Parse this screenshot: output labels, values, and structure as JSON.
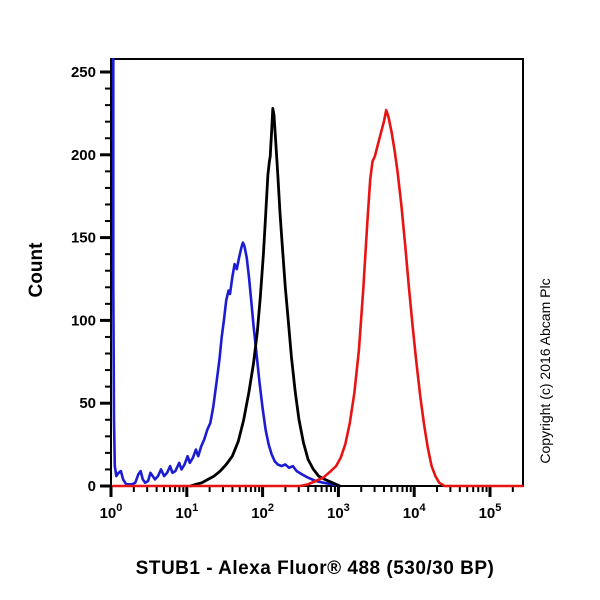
{
  "copyright": "Copyright (c) 2016 Abcam Plc",
  "chart_data": {
    "type": "line",
    "subtype": "flow-cytometry-histogram",
    "title": "STUB1 - Alexa Fluor® 488 (530/30 BP)",
    "xlabel": "STUB1 - Alexa Fluor® 488 (530/30 BP)",
    "ylabel": "Count",
    "grid": false,
    "legend": "none",
    "x_axis": {
      "scale": "log10",
      "min_log": 0,
      "max_log": 5.43,
      "tick_base": "10",
      "tick_exponents": [
        0,
        1,
        2,
        3,
        4,
        5
      ],
      "minor_tick_multiples": [
        2,
        3,
        4,
        5,
        6,
        7,
        8,
        9
      ]
    },
    "y_axis": {
      "min": 0,
      "max": 258,
      "major_ticks": [
        0,
        50,
        100,
        150,
        200,
        250
      ],
      "minor_step": 10
    },
    "series": [
      {
        "name": "blue-curve",
        "color": "#1c1cd2",
        "stroke_width": 2.6,
        "peak": {
          "x": 55,
          "count": 147
        },
        "points_log_count": [
          [
            0.03,
            258
          ],
          [
            0.03,
            120
          ],
          [
            0.04,
            40
          ],
          [
            0.05,
            12
          ],
          [
            0.07,
            6
          ],
          [
            0.1,
            8
          ],
          [
            0.13,
            9
          ],
          [
            0.16,
            4
          ],
          [
            0.2,
            1
          ],
          [
            0.24,
            1
          ],
          [
            0.28,
            1
          ],
          [
            0.32,
            2
          ],
          [
            0.36,
            7
          ],
          [
            0.39,
            9
          ],
          [
            0.42,
            4
          ],
          [
            0.45,
            2
          ],
          [
            0.49,
            3
          ],
          [
            0.52,
            8
          ],
          [
            0.55,
            6
          ],
          [
            0.58,
            4
          ],
          [
            0.62,
            6
          ],
          [
            0.66,
            10
          ],
          [
            0.7,
            6
          ],
          [
            0.74,
            8
          ],
          [
            0.78,
            12
          ],
          [
            0.81,
            8
          ],
          [
            0.85,
            9
          ],
          [
            0.9,
            14
          ],
          [
            0.93,
            10
          ],
          [
            0.97,
            13
          ],
          [
            1.01,
            18
          ],
          [
            1.04,
            14
          ],
          [
            1.08,
            17
          ],
          [
            1.12,
            22
          ],
          [
            1.15,
            18
          ],
          [
            1.19,
            24
          ],
          [
            1.23,
            28
          ],
          [
            1.27,
            34
          ],
          [
            1.31,
            38
          ],
          [
            1.35,
            48
          ],
          [
            1.39,
            62
          ],
          [
            1.43,
            76
          ],
          [
            1.46,
            90
          ],
          [
            1.49,
            100
          ],
          [
            1.52,
            112
          ],
          [
            1.55,
            118
          ],
          [
            1.57,
            116
          ],
          [
            1.6,
            126
          ],
          [
            1.63,
            134
          ],
          [
            1.66,
            131
          ],
          [
            1.69,
            138
          ],
          [
            1.72,
            144
          ],
          [
            1.74,
            147
          ],
          [
            1.76,
            145
          ],
          [
            1.79,
            138
          ],
          [
            1.82,
            126
          ],
          [
            1.85,
            112
          ],
          [
            1.88,
            97
          ],
          [
            1.92,
            80
          ],
          [
            1.96,
            62
          ],
          [
            2.0,
            47
          ],
          [
            2.04,
            34
          ],
          [
            2.08,
            25
          ],
          [
            2.12,
            19
          ],
          [
            2.16,
            15
          ],
          [
            2.2,
            13
          ],
          [
            2.25,
            12
          ],
          [
            2.3,
            13
          ],
          [
            2.35,
            11
          ],
          [
            2.4,
            12
          ],
          [
            2.45,
            9
          ],
          [
            2.52,
            7
          ],
          [
            2.6,
            5
          ],
          [
            2.7,
            3
          ],
          [
            2.8,
            2
          ],
          [
            2.92,
            1
          ],
          [
            3.02,
            0
          ]
        ]
      },
      {
        "name": "black-curve",
        "color": "#000000",
        "stroke_width": 2.8,
        "peak": {
          "x": 132,
          "count": 228
        },
        "points_log_count": [
          [
            1.05,
            0
          ],
          [
            1.12,
            1
          ],
          [
            1.2,
            2
          ],
          [
            1.28,
            4
          ],
          [
            1.36,
            6
          ],
          [
            1.44,
            9
          ],
          [
            1.52,
            13
          ],
          [
            1.6,
            18
          ],
          [
            1.68,
            27
          ],
          [
            1.75,
            40
          ],
          [
            1.82,
            57
          ],
          [
            1.88,
            74
          ],
          [
            1.93,
            93
          ],
          [
            1.97,
            114
          ],
          [
            2.01,
            140
          ],
          [
            2.04,
            163
          ],
          [
            2.07,
            188
          ],
          [
            2.09,
            196
          ],
          [
            2.1,
            199
          ],
          [
            2.12,
            215
          ],
          [
            2.135,
            228
          ],
          [
            2.15,
            224
          ],
          [
            2.17,
            210
          ],
          [
            2.2,
            188
          ],
          [
            2.23,
            165
          ],
          [
            2.26,
            145
          ],
          [
            2.3,
            120
          ],
          [
            2.34,
            99
          ],
          [
            2.38,
            78
          ],
          [
            2.43,
            57
          ],
          [
            2.48,
            40
          ],
          [
            2.54,
            26
          ],
          [
            2.6,
            16
          ],
          [
            2.67,
            10
          ],
          [
            2.74,
            6
          ],
          [
            2.82,
            4
          ],
          [
            2.92,
            2
          ],
          [
            3.02,
            0
          ]
        ]
      },
      {
        "name": "red-curve",
        "color": "#e81414",
        "stroke_width": 2.6,
        "peak": {
          "x": 4400,
          "count": 227
        },
        "points_log_count": [
          [
            0.03,
            0
          ],
          [
            2.5,
            0
          ],
          [
            2.6,
            1
          ],
          [
            2.7,
            3
          ],
          [
            2.8,
            5
          ],
          [
            2.9,
            9
          ],
          [
            2.97,
            12
          ],
          [
            3.03,
            17
          ],
          [
            3.09,
            25
          ],
          [
            3.15,
            38
          ],
          [
            3.21,
            56
          ],
          [
            3.27,
            82
          ],
          [
            3.33,
            120
          ],
          [
            3.38,
            158
          ],
          [
            3.42,
            185
          ],
          [
            3.45,
            196
          ],
          [
            3.48,
            199
          ],
          [
            3.52,
            206
          ],
          [
            3.56,
            213
          ],
          [
            3.6,
            220
          ],
          [
            3.63,
            227
          ],
          [
            3.66,
            223
          ],
          [
            3.7,
            214
          ],
          [
            3.74,
            203
          ],
          [
            3.78,
            190
          ],
          [
            3.83,
            170
          ],
          [
            3.88,
            146
          ],
          [
            3.93,
            120
          ],
          [
            3.98,
            96
          ],
          [
            4.03,
            74
          ],
          [
            4.08,
            54
          ],
          [
            4.13,
            37
          ],
          [
            4.18,
            23
          ],
          [
            4.23,
            12
          ],
          [
            4.28,
            6
          ],
          [
            4.33,
            2
          ],
          [
            4.4,
            0
          ],
          [
            5.43,
            0
          ]
        ]
      }
    ]
  }
}
